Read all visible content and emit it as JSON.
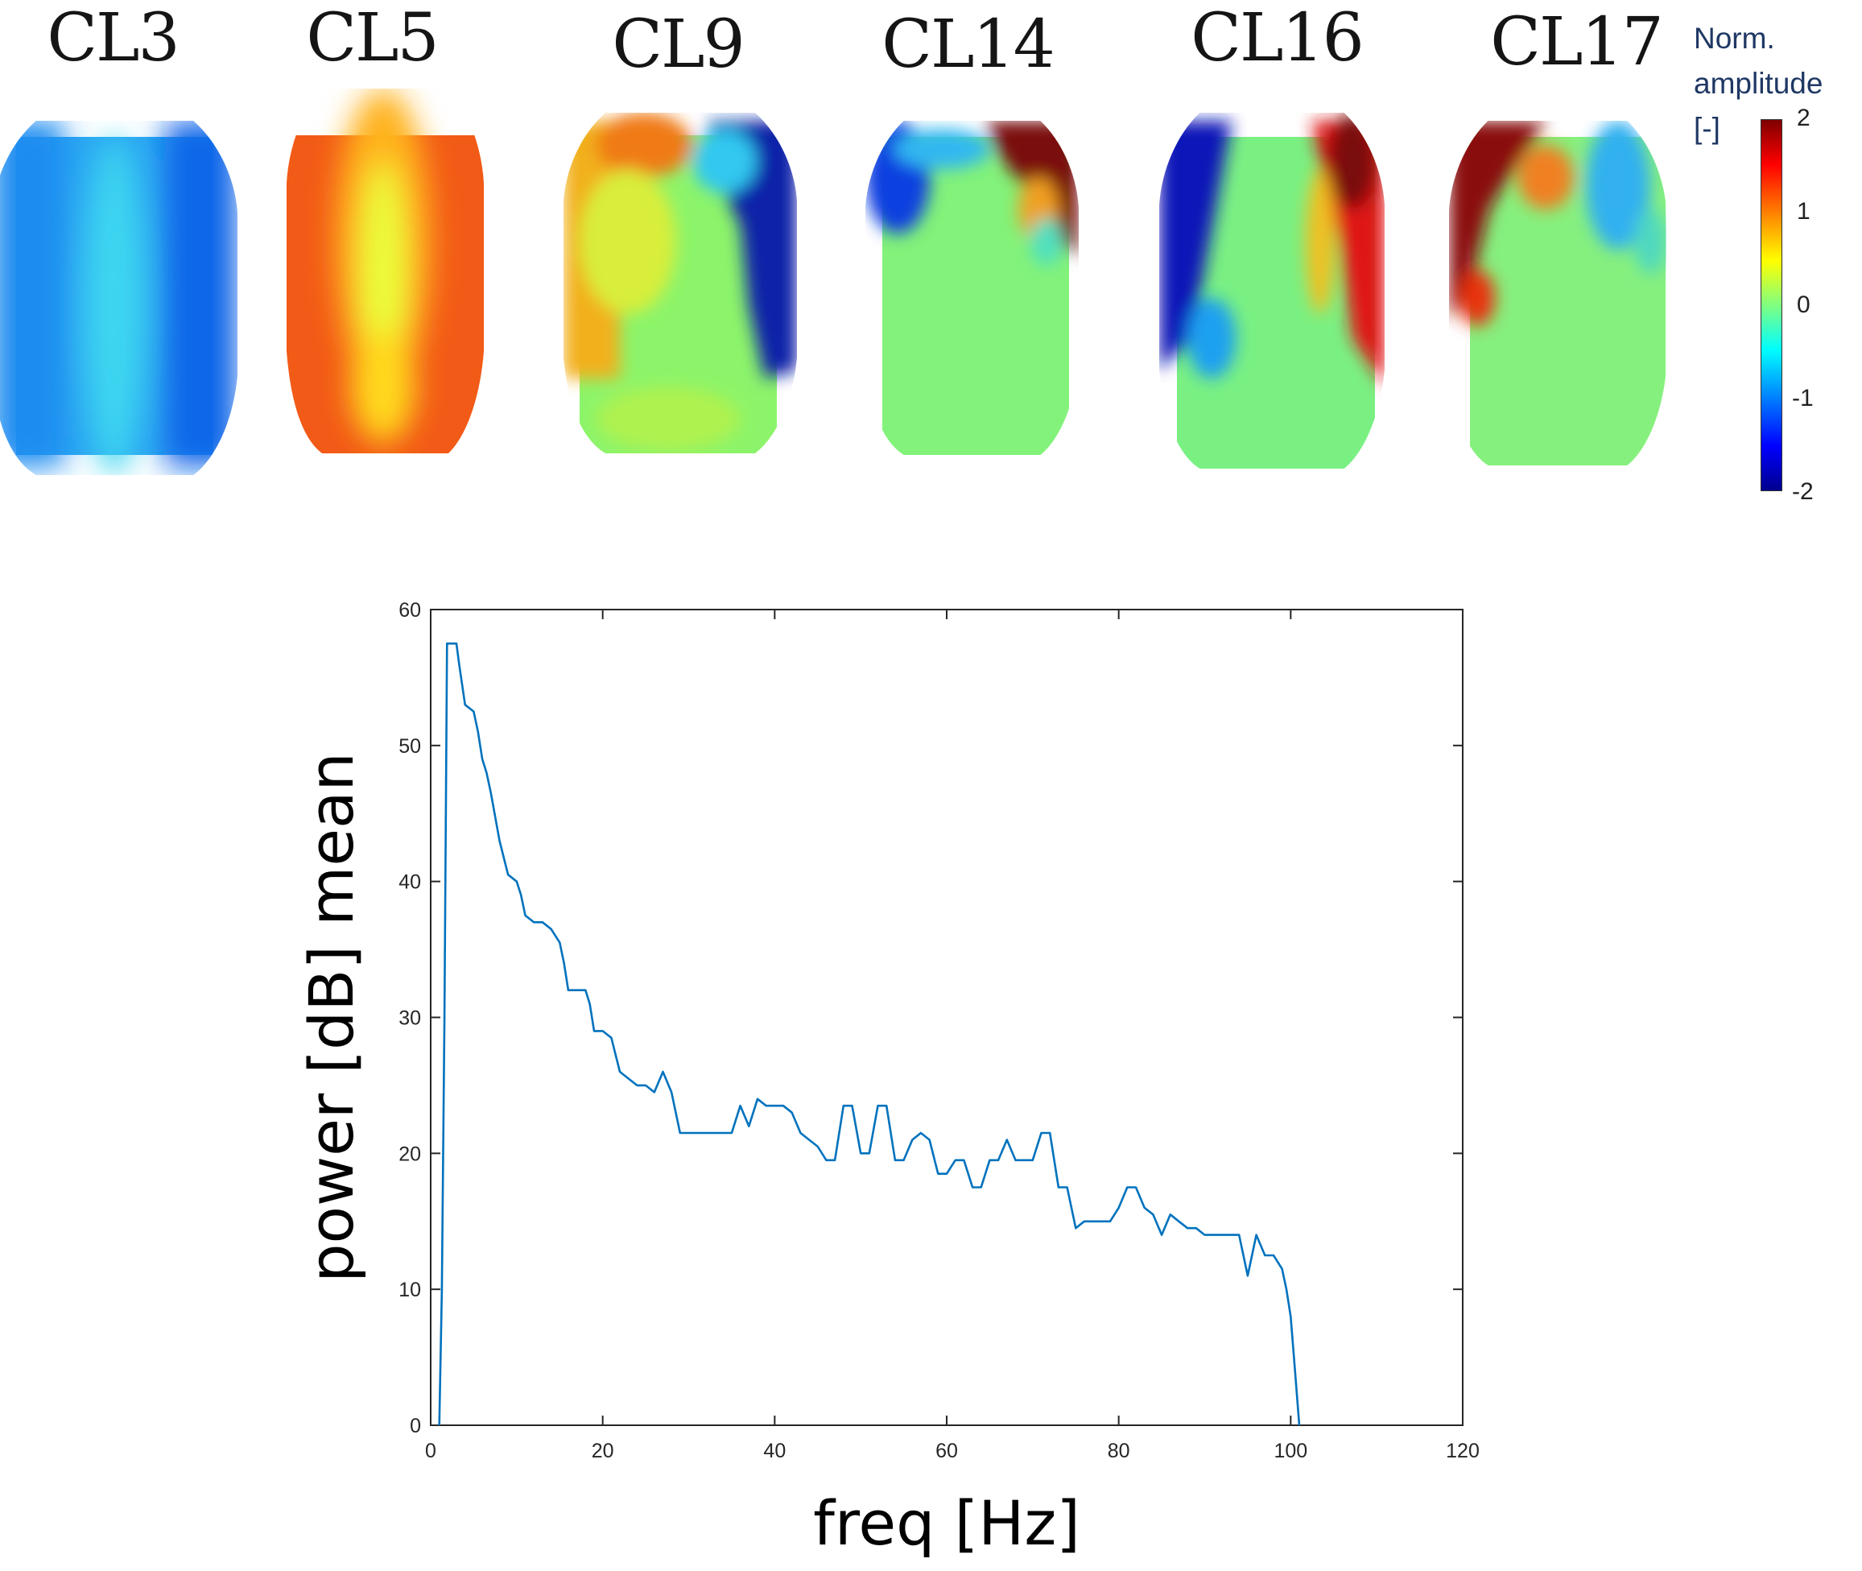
{
  "topomaps": {
    "clusters": [
      {
        "label": "CL3",
        "pattern": "blue-ridge"
      },
      {
        "label": "CL5",
        "pattern": "orange-ridge"
      },
      {
        "label": "CL9",
        "pattern": "right-frontal-blue"
      },
      {
        "label": "CL14",
        "pattern": "right-frontal-red"
      },
      {
        "label": "CL16",
        "pattern": "lateral-dipole"
      },
      {
        "label": "CL17",
        "pattern": "left-frontal-red"
      }
    ],
    "colorbar": {
      "label_lines": [
        "Norm.",
        "amplitude",
        "[-]"
      ],
      "ticks": [
        "2",
        "1",
        "0",
        "-1",
        "-2"
      ],
      "colormap": "jet",
      "range": [
        -2,
        2
      ]
    }
  },
  "chart_data": {
    "type": "line",
    "title": "",
    "xlabel": "freq [Hz]",
    "ylabel": "power [dB] mean",
    "xlim": [
      0,
      120
    ],
    "ylim": [
      0,
      60
    ],
    "xticks": [
      "0",
      "20",
      "40",
      "60",
      "80",
      "100",
      "120"
    ],
    "yticks": [
      "0",
      "10",
      "20",
      "30",
      "40",
      "50",
      "60"
    ],
    "line_color": "#0072bd",
    "series": [
      {
        "name": "power",
        "x": [
          1,
          1.3,
          1.6,
          1.9,
          2.5,
          3,
          3.3,
          4,
          5,
          5.5,
          6,
          6.5,
          7,
          8,
          9,
          10,
          10.5,
          11,
          12,
          13,
          14,
          15,
          15.5,
          16,
          17,
          18,
          18.5,
          19,
          20,
          21,
          22,
          23,
          24,
          25,
          26,
          27,
          28,
          29,
          30,
          31,
          32,
          33,
          34,
          35,
          36,
          37,
          38,
          39,
          40,
          41,
          42,
          43,
          44,
          45,
          46,
          47,
          48,
          49,
          50,
          51,
          52,
          53,
          54,
          55,
          56,
          57,
          58,
          59,
          60,
          61,
          62,
          63,
          64,
          65,
          66,
          67,
          68,
          69,
          70,
          71,
          72,
          73,
          74,
          75,
          76,
          77,
          78,
          79,
          80,
          81,
          82,
          83,
          84,
          85,
          86,
          87,
          88,
          89,
          90,
          91,
          92,
          93,
          94,
          95,
          96,
          97,
          98,
          99,
          99.5,
          100,
          100.5,
          101
        ],
        "y": [
          0,
          10,
          30,
          57.5,
          57.5,
          57.5,
          56,
          53,
          52.5,
          51,
          49,
          48,
          46.5,
          43,
          40.5,
          40,
          39,
          37.5,
          37,
          37,
          36.5,
          35.5,
          34,
          32,
          32,
          32,
          31,
          29,
          29,
          28.5,
          26,
          25.5,
          25,
          25,
          24.5,
          26,
          24.5,
          21.5,
          21.5,
          21.5,
          21.5,
          21.5,
          21.5,
          21.5,
          23.5,
          22,
          24,
          23.5,
          23.5,
          23.5,
          23,
          21.5,
          21,
          20.5,
          19.5,
          19.5,
          23.5,
          23.5,
          20,
          20,
          23.5,
          23.5,
          19.5,
          19.5,
          21,
          21.5,
          21,
          18.5,
          18.5,
          19.5,
          19.5,
          17.5,
          17.5,
          19.5,
          19.5,
          21,
          19.5,
          19.5,
          19.5,
          21.5,
          21.5,
          17.5,
          17.5,
          14.5,
          15,
          15,
          15,
          15,
          16,
          17.5,
          17.5,
          16,
          15.5,
          14,
          15.5,
          15,
          14.5,
          14.5,
          14,
          14,
          14,
          14,
          14,
          11,
          14,
          12.5,
          12.5,
          11.5,
          10,
          8,
          4,
          0
        ]
      }
    ]
  }
}
